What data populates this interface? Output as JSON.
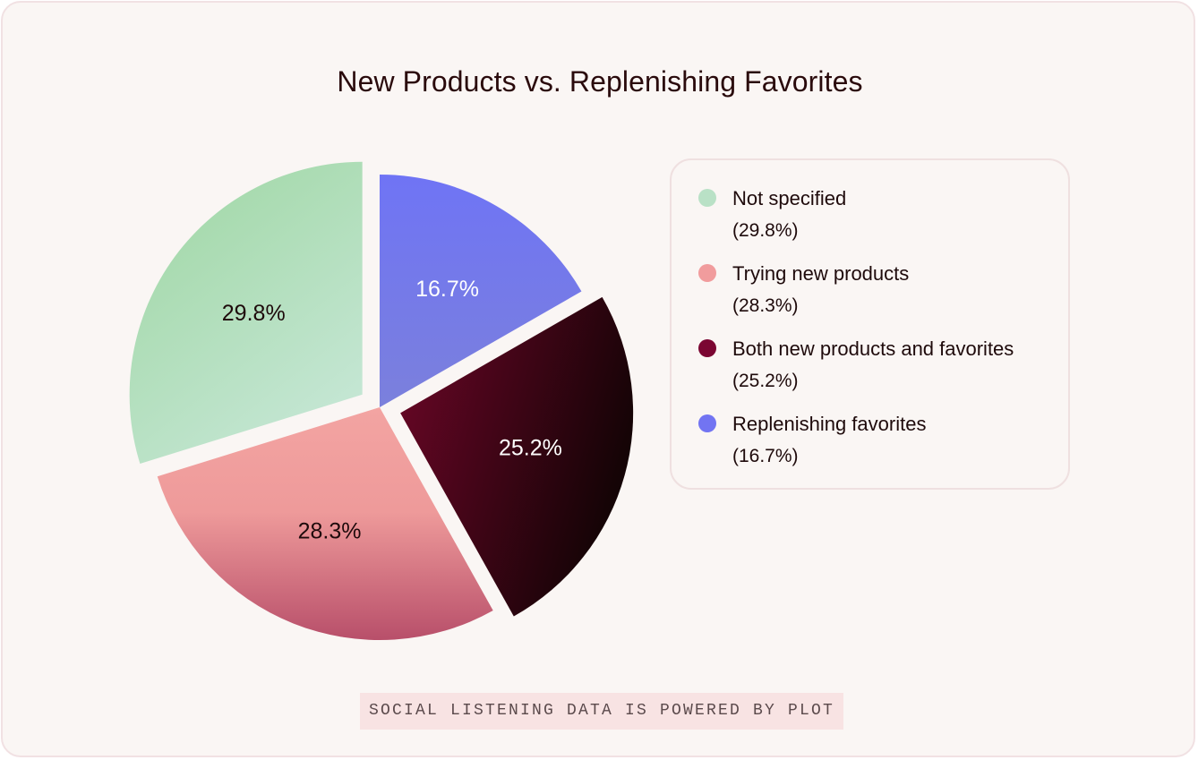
{
  "chart_data": {
    "type": "pie",
    "title": "New Products vs. Replenishing Favorites",
    "slices": [
      {
        "name": "Not specified",
        "value": 29.8,
        "label": "29.8%",
        "legend_pct": "(29.8%)",
        "color": "#b9e1c6",
        "label_color": "#1e0a0b",
        "exploded": true
      },
      {
        "name": "Trying new products",
        "value": 28.3,
        "label": "28.3%",
        "legend_pct": "(28.3%)",
        "color": "#f19c9d",
        "label_color": "#1e0a0b",
        "exploded": false
      },
      {
        "name": "Both new products and favorites",
        "value": 25.2,
        "label": "25.2%",
        "legend_pct": "(25.2%)",
        "color": "#7b0632",
        "label_color": "#ffffff",
        "exploded": true
      },
      {
        "name": "Replenishing favorites",
        "value": 16.7,
        "label": "16.7%",
        "legend_pct": "(16.7%)",
        "color": "#7274f2",
        "label_color": "#ffffff",
        "exploded": false
      }
    ],
    "legend_position": "right"
  },
  "footer": {
    "text": "SOCIAL LISTENING DATA IS POWERED BY PLOT"
  },
  "colors": {
    "background": "#faf6f4",
    "border": "#f1e1e3",
    "title": "#2a0a0c"
  }
}
